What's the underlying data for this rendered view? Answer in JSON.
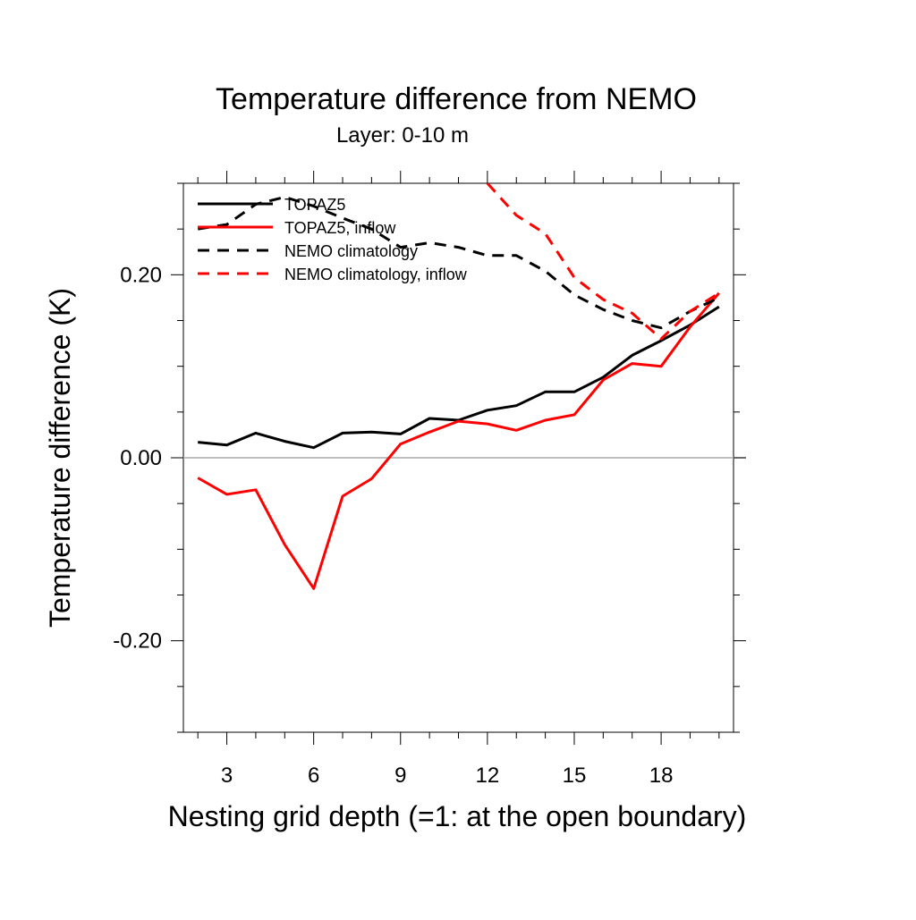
{
  "chart_data": {
    "type": "line",
    "title": "Temperature difference from NEMO",
    "subtitle": "Layer: 0-10 m",
    "xlabel": "Nesting grid depth (=1: at the open boundary)",
    "ylabel": "Temperature difference (K)",
    "xlim": [
      1.5,
      20.5
    ],
    "ylim": [
      -0.3,
      0.3
    ],
    "x_ticks": [
      3,
      6,
      9,
      12,
      15,
      18
    ],
    "y_ticks": [
      -0.2,
      0.0,
      0.2
    ],
    "y_tick_labels": [
      "-0.20",
      "0.00",
      "0.20"
    ],
    "zero_line": true,
    "grid": false,
    "legend_position": "top-left",
    "series": [
      {
        "name": "TOPAZ5",
        "color": "#000000",
        "dash": "solid",
        "x": [
          2,
          3,
          4,
          5,
          6,
          7,
          8,
          9,
          10,
          11,
          12,
          13,
          14,
          15,
          16,
          17,
          18,
          19,
          20
        ],
        "y": [
          0.017,
          0.014,
          0.027,
          0.018,
          0.011,
          0.027,
          0.028,
          0.026,
          0.043,
          0.041,
          0.052,
          0.057,
          0.072,
          0.072,
          0.088,
          0.112,
          0.128,
          0.145,
          0.165
        ]
      },
      {
        "name": "TOPAZ5, inflow",
        "color": "#ff0000",
        "dash": "solid",
        "x": [
          2,
          3,
          4,
          5,
          6,
          7,
          8,
          9,
          10,
          11,
          12,
          13,
          14,
          15,
          16,
          17,
          18,
          19,
          20
        ],
        "y": [
          -0.022,
          -0.04,
          -0.035,
          -0.095,
          -0.143,
          -0.042,
          -0.023,
          0.015,
          0.028,
          0.04,
          0.037,
          0.03,
          0.041,
          0.047,
          0.085,
          0.103,
          0.1,
          0.143,
          0.18
        ]
      },
      {
        "name": "NEMO climatology",
        "color": "#000000",
        "dash": "dashed",
        "x": [
          2,
          3,
          4,
          5,
          6,
          7,
          8,
          9,
          10,
          11,
          12,
          13,
          14,
          15,
          16,
          17,
          18,
          19,
          20
        ],
        "y": [
          0.25,
          0.255,
          0.277,
          0.285,
          0.275,
          0.262,
          0.25,
          0.23,
          0.235,
          0.23,
          0.221,
          0.221,
          0.204,
          0.178,
          0.162,
          0.15,
          0.142,
          0.16,
          0.175
        ]
      },
      {
        "name": "NEMO climatology, inflow",
        "color": "#ff0000",
        "dash": "dashed",
        "x": [
          12,
          13,
          14,
          15,
          16,
          17,
          18,
          19,
          20
        ],
        "y": [
          0.3,
          0.265,
          0.245,
          0.197,
          0.173,
          0.158,
          0.13,
          0.16,
          0.18
        ]
      }
    ]
  }
}
